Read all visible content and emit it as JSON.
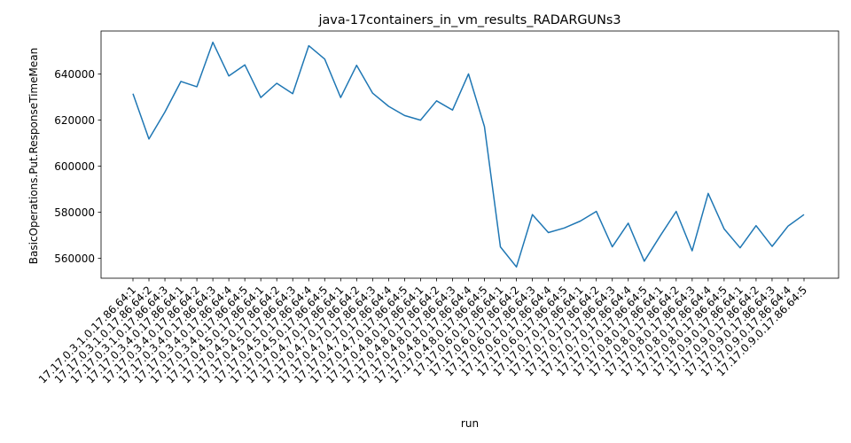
{
  "chart_data": {
    "type": "line",
    "title": "java-17containers_in_vm_results_RADARGUNs3",
    "xlabel": "run",
    "ylabel": "BasicOperations.Put.ResponseTimeMean",
    "categories": [
      "17.17.0.3.1.0.17.86.64:1",
      "17.17.0.3.1.0.17.86.64:2",
      "17.17.0.3.1.0.17.86.64:3",
      "17.17.0.3.4.0.17.86.64:1",
      "17.17.0.3.4.0.17.86.64:2",
      "17.17.0.3.4.0.17.86.64:3",
      "17.17.0.3.4.0.17.86.64:4",
      "17.17.0.3.4.0.17.86.64:5",
      "17.17.0.4.5.0.17.86.64:1",
      "17.17.0.4.5.0.17.86.64:2",
      "17.17.0.4.5.0.17.86.64:3",
      "17.17.0.4.5.0.17.86.64:4",
      "17.17.0.4.5.0.17.86.64:5",
      "17.17.0.4.7.0.17.86.64:1",
      "17.17.0.4.7.0.17.86.64:2",
      "17.17.0.4.7.0.17.86.64:3",
      "17.17.0.4.7.0.17.86.64:4",
      "17.17.0.4.7.0.17.86.64:5",
      "17.17.0.4.8.0.17.86.64:1",
      "17.17.0.4.8.0.17.86.64:2",
      "17.17.0.4.8.0.17.86.64:3",
      "17.17.0.4.8.0.17.86.64:4",
      "17.17.0.4.8.0.17.86.64:5",
      "17.17.0.6.0.17.86.64:1",
      "17.17.0.6.0.17.86.64:2",
      "17.17.0.6.0.17.86.64:3",
      "17.17.0.6.0.17.86.64:4",
      "17.17.0.6.0.17.86.64:5",
      "17.17.0.7.0.17.86.64:1",
      "17.17.0.7.0.17.86.64:2",
      "17.17.0.7.0.17.86.64:3",
      "17.17.0.7.0.17.86.64:4",
      "17.17.0.7.0.17.86.64:5",
      "17.17.0.8.0.17.86.64:1",
      "17.17.0.8.0.17.86.64:2",
      "17.17.0.8.0.17.86.64:3",
      "17.17.0.8.0.17.86.64:4",
      "17.17.0.8.0.17.86.64:5",
      "17.17.0.9.0.17.86.64:1",
      "17.17.0.9.0.17.86.64:2",
      "17.17.0.9.0.17.86.64:3",
      "17.17.0.9.0.17.86.64:4",
      "17.17.0.9.0.17.86.64:5"
    ],
    "series": [
      {
        "color": "#1f77b4",
        "values": [
          631500,
          611800,
          623500,
          636800,
          634500,
          653800,
          639200,
          644000,
          629800,
          636000,
          631500,
          652300,
          646500,
          629800,
          643800,
          631700,
          626000,
          622000,
          620000,
          628400,
          624400,
          640100,
          617200,
          565000,
          556300,
          579000,
          571200,
          573200,
          576200,
          580400,
          565000,
          575300,
          558800,
          569800,
          580400,
          563300,
          588200,
          572800,
          564600,
          574200,
          565200,
          574000,
          579000
        ]
      }
    ],
    "ylim": [
      551400,
      658700
    ],
    "yticks": [
      560000,
      580000,
      600000,
      620000,
      640000
    ],
    "ytick_labels": [
      "560000",
      "580000",
      "600000",
      "620000",
      "640000"
    ],
    "grid": false,
    "legend": "none"
  }
}
